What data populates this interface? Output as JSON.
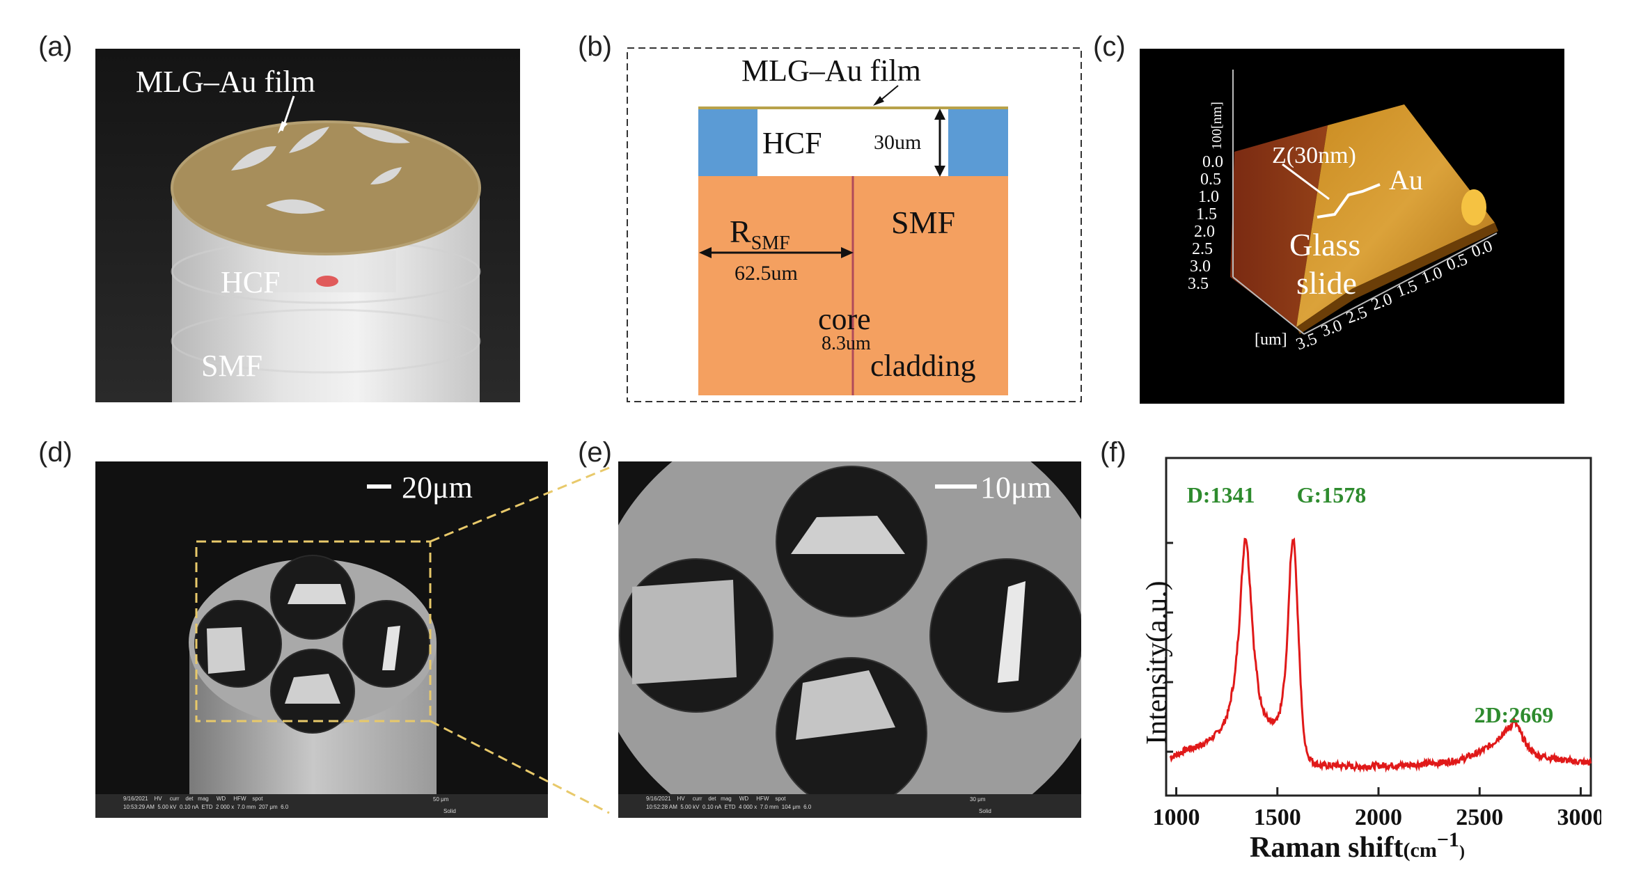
{
  "panels": {
    "a": {
      "label": "(a)",
      "film": "MLG–Au  film",
      "hcf": "HCF",
      "smf": "SMF"
    },
    "b": {
      "label": "(b)",
      "film": "MLG–Au  film",
      "hcf": "HCF",
      "thickness": "30um",
      "r_main": "R",
      "r_sub": "SMF",
      "radius": "62.5um",
      "smf": "SMF",
      "core": "core",
      "core_size": "8.3um",
      "cladding": "cladding"
    },
    "c": {
      "label": "(c)",
      "z_max": "100[nm]",
      "z_label": "Z(30nm)",
      "au": "Au",
      "glass1": "Glass",
      "glass2": "slide",
      "left_ticks": [
        "0.0",
        "0.5",
        "1.0",
        "1.5",
        "2.0",
        "2.5",
        "3.0",
        "3.5"
      ],
      "bottom_ticks": [
        "3.5",
        "3.0",
        "2.5",
        "2.0",
        "1.5",
        "1.0",
        "0.5",
        "0.0"
      ],
      "unit": "[um]"
    },
    "d": {
      "label": "(d)",
      "scale": "20μm",
      "info_row1": "9/16/2021    HV     curr    det   mag     WD     HFW    spot",
      "info_row2": "10:53:29 AM  5.00 kV  0.10 nA  ETD  2 000 x  7.0 mm  207 μm  6.0",
      "bar_text": "50 μm",
      "bar_sub": "Solid"
    },
    "e": {
      "label": "(e)",
      "scale": "10μm",
      "info_row1": "9/16/2021    HV     curr    det   mag     WD     HFW    spot",
      "info_row2": "10:52:28 AM  5.00 kV  0.10 nA  ETD  4 000 x  7.0 mm  104 μm  6.0",
      "bar_text": "30 μm",
      "bar_sub": "Solid"
    }
  },
  "chart_data": {
    "type": "line",
    "label": "(f)",
    "xlabel": "Raman shift",
    "xlabel_unit": "(cm",
    "xlabel_exp": "−1",
    "xlabel_end": ")",
    "ylabel": "Intensity(a.u.)",
    "xlim": [
      950,
      3050
    ],
    "ylim": [
      0,
      1
    ],
    "xticks": [
      "1000",
      "1500",
      "2000",
      "2500",
      "3000"
    ],
    "color": "#e01919",
    "annotations": [
      {
        "text": "D:1341",
        "x": 1341
      },
      {
        "text": "G:1578",
        "x": 1578
      },
      {
        "text": "2D:2669",
        "x": 2669
      }
    ],
    "series": [
      {
        "name": "Raman spectrum",
        "x": [
          970,
          1000,
          1050,
          1100,
          1150,
          1200,
          1230,
          1260,
          1290,
          1310,
          1325,
          1335,
          1341,
          1350,
          1365,
          1385,
          1410,
          1440,
          1470,
          1500,
          1520,
          1540,
          1555,
          1565,
          1578,
          1588,
          1600,
          1615,
          1630,
          1650,
          1680,
          1720,
          1800,
          1900,
          2000,
          2100,
          2200,
          2300,
          2400,
          2500,
          2560,
          2600,
          2630,
          2655,
          2669,
          2685,
          2710,
          2740,
          2780,
          2850,
          2920,
          2980,
          3050
        ],
        "values": [
          0.07,
          0.08,
          0.1,
          0.11,
          0.13,
          0.16,
          0.19,
          0.25,
          0.38,
          0.56,
          0.76,
          0.87,
          0.91,
          0.88,
          0.72,
          0.48,
          0.31,
          0.23,
          0.2,
          0.21,
          0.27,
          0.4,
          0.62,
          0.82,
          0.91,
          0.84,
          0.62,
          0.35,
          0.16,
          0.08,
          0.05,
          0.04,
          0.04,
          0.035,
          0.04,
          0.04,
          0.045,
          0.05,
          0.06,
          0.09,
          0.12,
          0.15,
          0.17,
          0.19,
          0.21,
          0.19,
          0.15,
          0.11,
          0.08,
          0.07,
          0.06,
          0.055,
          0.05
        ]
      }
    ]
  }
}
